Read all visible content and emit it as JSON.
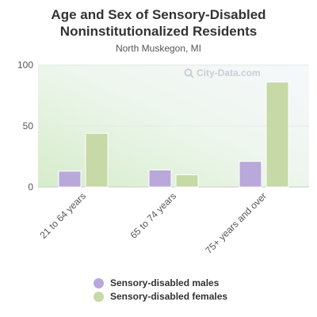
{
  "chart_data": {
    "type": "bar",
    "title": "Age and Sex of Sensory-Disabled Noninstitutionalized Residents",
    "subtitle": "North Muskegon, MI",
    "categories": [
      "21 to 64 years",
      "65 to 74 years",
      "75+ years and over"
    ],
    "series": [
      {
        "name": "Sensory-disabled males",
        "values": [
          13,
          14,
          21
        ],
        "color": "#b9a9da"
      },
      {
        "name": "Sensory-disabled females",
        "values": [
          44,
          10,
          86
        ],
        "color": "#c6d9a6"
      }
    ],
    "ylim": [
      0,
      100
    ],
    "yticks": [
      0,
      50,
      100
    ],
    "grid": true,
    "legend_position": "bottom"
  },
  "watermark": {
    "text": "City-Data.com",
    "icon": "magnifier-icon"
  }
}
